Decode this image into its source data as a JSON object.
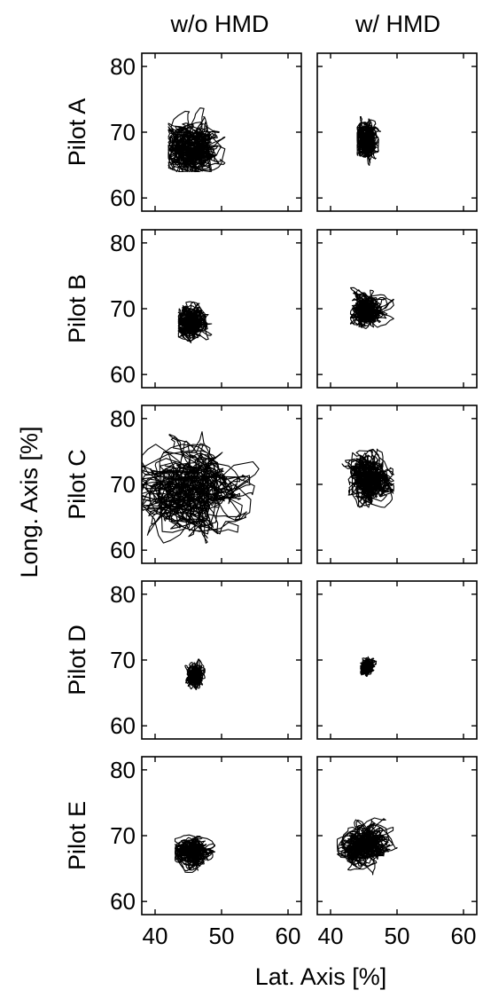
{
  "figure": {
    "column_titles": [
      "w/o HMD",
      "w/ HMD"
    ],
    "row_labels": [
      "Pilot A",
      "Pilot B",
      "Pilot C",
      "Pilot D",
      "Pilot E"
    ],
    "ylabel": "Long. Axis [%]",
    "xlabel": "Lat. Axis [%]"
  },
  "colors": {
    "trace": "#000000",
    "axes": "#000000",
    "background": "#ffffff"
  },
  "chart_data": {
    "type": "scatter",
    "layout": "small-multiples 5 rows x 2 columns",
    "xlim": [
      38,
      62
    ],
    "ylim": [
      58,
      82
    ],
    "xticks": [
      40,
      50,
      60
    ],
    "yticks": [
      60,
      70,
      80
    ],
    "grid": false,
    "legend": "none",
    "panels": [
      {
        "row": "Pilot A",
        "col": "w/o HMD",
        "center": [
          45.5,
          67.5
        ],
        "spread": [
          2.3,
          1.9
        ],
        "extent": {
          "x": [
            42,
            50.5
          ],
          "y": [
            64,
            74
          ]
        }
      },
      {
        "row": "Pilot A",
        "col": "w/ HMD",
        "center": [
          45.5,
          68.8
        ],
        "spread": [
          0.9,
          1.3
        ],
        "extent": {
          "x": [
            44,
            48.5
          ],
          "y": [
            64.8,
            72.5
          ]
        }
      },
      {
        "row": "Pilot B",
        "col": "w/o HMD",
        "center": [
          45.5,
          68.0
        ],
        "spread": [
          1.2,
          1.2
        ],
        "extent": {
          "x": [
            43.5,
            48.5
          ],
          "y": [
            64,
            72.5
          ]
        }
      },
      {
        "row": "Pilot B",
        "col": "w/ HMD",
        "center": [
          45.3,
          69.8
        ],
        "spread": [
          1.2,
          1.2
        ],
        "extent": {
          "x": [
            43,
            49.5
          ],
          "y": [
            66,
            73.5
          ]
        }
      },
      {
        "row": "Pilot C",
        "col": "w/o HMD",
        "center": [
          45.0,
          69.0
        ],
        "spread": [
          3.6,
          3.4
        ],
        "extent": {
          "x": [
            38,
            62
          ],
          "y": [
            58,
            78
          ]
        }
      },
      {
        "row": "Pilot C",
        "col": "w/ HMD",
        "center": [
          46.0,
          71.0
        ],
        "spread": [
          1.6,
          1.9
        ],
        "extent": {
          "x": [
            40.5,
            49.5
          ],
          "y": [
            66.5,
            77
          ]
        }
      },
      {
        "row": "Pilot D",
        "col": "w/o HMD",
        "center": [
          46.0,
          67.5
        ],
        "spread": [
          0.6,
          0.8
        ],
        "extent": {
          "x": [
            44,
            47.5
          ],
          "y": [
            65.5,
            70.5
          ]
        }
      },
      {
        "row": "Pilot D",
        "col": "w/ HMD",
        "center": [
          45.5,
          69.0
        ],
        "spread": [
          0.5,
          0.6
        ],
        "extent": {
          "x": [
            44.5,
            47
          ],
          "y": [
            67.5,
            70.5
          ]
        }
      },
      {
        "row": "Pilot E",
        "col": "w/o HMD",
        "center": [
          45.5,
          67.5
        ],
        "spread": [
          1.3,
          1.0
        ],
        "extent": {
          "x": [
            43,
            49
          ],
          "y": [
            64,
            71.5
          ]
        }
      },
      {
        "row": "Pilot E",
        "col": "w/ HMD",
        "center": [
          45.0,
          68.5
        ],
        "spread": [
          1.8,
          1.5
        ],
        "extent": {
          "x": [
            41,
            50
          ],
          "y": [
            63.5,
            73
          ]
        }
      }
    ]
  }
}
